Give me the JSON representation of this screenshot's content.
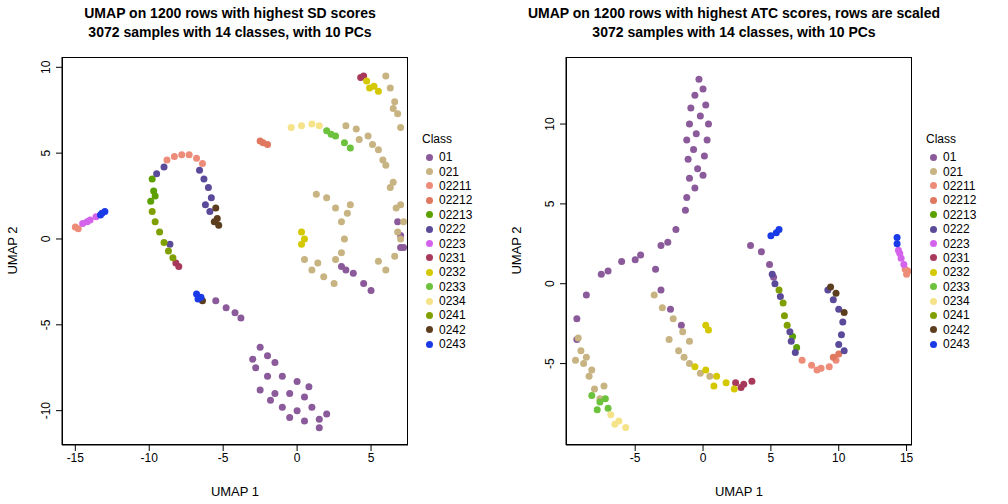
{
  "chart_data": [
    {
      "type": "scatter",
      "title": "UMAP on 1200 rows with highest SD scores",
      "subtitle": "3072 samples with 14 classes, with 10 PCs",
      "x_label": "UMAP 1",
      "y_label": "UMAP 2",
      "legend_title": "Class",
      "xlim": [
        -15.9,
        7.5
      ],
      "ylim": [
        -12,
        10.6
      ],
      "xticks": [
        -15,
        -10,
        -5,
        0,
        5
      ],
      "yticks": [
        -10,
        -5,
        0,
        5,
        10
      ],
      "series": [
        {
          "name": "01",
          "color": "#8B5A9A",
          "x": [
            -2.5,
            -2,
            -1.5,
            -2.8,
            -2,
            -1,
            0,
            -2.5,
            -1.5,
            -0.5,
            0.5,
            1,
            -1,
            0,
            1.5,
            0.5,
            1.5,
            -0.5,
            -1.8,
            2,
            0.8,
            -3,
            -5.5,
            -4.8,
            -4.2,
            -3.8,
            3,
            3.8,
            4.5,
            5,
            3.3,
            6.8,
            7.2,
            7,
            7
          ],
          "values": [
            -6.3,
            -6.8,
            -7.2,
            -7.5,
            -8,
            -8,
            -8.3,
            -8.8,
            -9,
            -9,
            -9.2,
            -9.8,
            -9.8,
            -10,
            -10.5,
            -10.6,
            -11,
            -10.4,
            -9.4,
            -10.2,
            -8.6,
            -7,
            -3.6,
            -4,
            -4.3,
            -4.6,
            -1.6,
            -2,
            -2.6,
            -3,
            -1.8,
            1,
            -0.5,
            0.2,
            -0.5
          ]
        },
        {
          "name": "021",
          "color": "#C8B482",
          "x": [
            3.3,
            4,
            4.8,
            5.5,
            6,
            6.5,
            7,
            7.2,
            7,
            6.6,
            6,
            5.5,
            4.2,
            5.1,
            5.8,
            6.3,
            6.7,
            6.8,
            1.3,
            2,
            2.6,
            3,
            3.2,
            3,
            2.6,
            3.6,
            3.4,
            0.5,
            1,
            1.8,
            2.5,
            1.4,
            6,
            6.3,
            6.6,
            6.8,
            7,
            6.5
          ],
          "values": [
            6.6,
            6.4,
            6,
            5.2,
            4.3,
            3.3,
            2,
            1,
            0,
            -1,
            -1.8,
            -1.3,
            5.8,
            5.5,
            4.6,
            3,
            1.8,
            0.4,
            2.6,
            2.4,
            1.8,
            1,
            0,
            -0.8,
            -1.2,
            2,
            1.5,
            -1.2,
            -1.8,
            -2.2,
            -2.6,
            -1.4,
            9.5,
            8.8,
            8,
            7.3,
            6.5,
            7.6
          ]
        },
        {
          "name": "02211",
          "color": "#EE8C7A",
          "x": [
            -8.8,
            -8.3,
            -7.8,
            -7.3,
            -6.8,
            -6.4,
            -15,
            -14.8
          ],
          "values": [
            4.6,
            4.8,
            4.9,
            4.9,
            4.7,
            4.4,
            0.7,
            0.6
          ]
        },
        {
          "name": "02212",
          "color": "#E07860",
          "x": [
            -2.3,
            -2,
            -2.5
          ],
          "values": [
            5.6,
            5.5,
            5.7
          ]
        },
        {
          "name": "02213",
          "color": "#5CA000",
          "x": [
            -9.8,
            -9.7,
            -9.9,
            -9.6
          ],
          "values": [
            3.5,
            2.8,
            2.2,
            2.5
          ]
        },
        {
          "name": "0222",
          "color": "#5B4A9A",
          "x": [
            -6.6,
            -6.3,
            -6,
            -5.8,
            -6.2,
            -5.9,
            -9.5,
            -9,
            -8.6
          ],
          "values": [
            4,
            3.5,
            3,
            2.4,
            2,
            1.6,
            3.8,
            4.2,
            -0.3
          ]
        },
        {
          "name": "0223",
          "color": "#D463EC",
          "x": [
            -14.5,
            -14,
            -13.6,
            -14.2
          ],
          "values": [
            0.9,
            1.1,
            1.3,
            1
          ]
        },
        {
          "name": "0231",
          "color": "#A8395A",
          "x": [
            4.3,
            4.5,
            -8.2,
            -8
          ],
          "values": [
            9.4,
            9.5,
            -1.4,
            -1.6
          ]
        },
        {
          "name": "0232",
          "color": "#D4C800",
          "x": [
            4.7,
            5.2,
            5.5,
            4.9,
            0.3,
            0.5,
            0.3
          ],
          "values": [
            9.2,
            8.9,
            8.6,
            8.8,
            0.4,
            0,
            -0.3
          ]
        },
        {
          "name": "0233",
          "color": "#6CC23C",
          "x": [
            2,
            2.6,
            3.2,
            3.6,
            2.3
          ],
          "values": [
            6.3,
            6,
            5.6,
            5.3,
            6.1
          ]
        },
        {
          "name": "0234",
          "color": "#F5E38A",
          "x": [
            -0.4,
            0.3,
            1,
            1.5
          ],
          "values": [
            6.5,
            6.6,
            6.7,
            6.6
          ]
        },
        {
          "name": "0241",
          "color": "#7FA000",
          "x": [
            -9.8,
            -9.6,
            -9.3,
            -9,
            -8.7,
            -8.4
          ],
          "values": [
            1.6,
            1,
            0.4,
            -0.2,
            -0.7,
            -1.1
          ]
        },
        {
          "name": "0242",
          "color": "#5C3E1E",
          "x": [
            -5.5,
            -5.4,
            -5.3,
            -5.6,
            -6.4
          ],
          "values": [
            1.8,
            1.2,
            0.8,
            1,
            -3.6
          ]
        },
        {
          "name": "0243",
          "color": "#1A3AE8",
          "x": [
            -13.3,
            -13,
            -13.2,
            -6.8,
            -6.5,
            -6.7
          ],
          "values": [
            1.4,
            1.6,
            1.5,
            -3.2,
            -3.4,
            -3.5
          ]
        }
      ]
    },
    {
      "type": "scatter",
      "title": "UMAP on 1200 rows with highest ATC scores, rows are scaled",
      "subtitle": "3072 samples with 14 classes, with 10 PCs",
      "x_label": "UMAP 1",
      "y_label": "UMAP 2",
      "legend_title": "Class",
      "xlim": [
        -10.1,
        15.4
      ],
      "ylim": [
        -10.1,
        14.2
      ],
      "xticks": [
        -5,
        0,
        5,
        10,
        15
      ],
      "yticks": [
        -5,
        0,
        5,
        10
      ],
      "series": [
        {
          "name": "01",
          "color": "#8B5A9A",
          "x": [
            -0.3,
            0,
            -0.6,
            0.2,
            -0.9,
            -0.2,
            0.4,
            -1,
            -0.5,
            0.3,
            -1.2,
            -0.7,
            0.1,
            -1.1,
            -0.4,
            -1,
            -0.6,
            -1.2,
            0,
            -1.3,
            -2,
            -3.1,
            -4.6,
            -6,
            -7.5,
            -8.6,
            -9.3,
            -9.3,
            -3.5,
            -3.1,
            -2.4,
            -1.6,
            3.5,
            4.3,
            4.9,
            5.2,
            -2.6,
            -5,
            -7
          ],
          "values": [
            12.8,
            12.2,
            11.8,
            11.2,
            11,
            10.5,
            10,
            10,
            9.4,
            9,
            9,
            8.4,
            8,
            7.8,
            7.2,
            6.6,
            6,
            5.4,
            6.8,
            4.6,
            3.4,
            2.4,
            1.8,
            1.4,
            0.6,
            -0.7,
            -2.2,
            -3.5,
            0.9,
            -0.4,
            -1.6,
            -2.6,
            2.4,
            2,
            1.2,
            0.4,
            2.6,
            1.5,
            0.8
          ]
        },
        {
          "name": "021",
          "color": "#C8B482",
          "x": [
            -9.2,
            -9,
            -8.8,
            -8.4,
            -8,
            -7.6,
            -8.6,
            -8.2,
            -7.3,
            -9.4,
            -3.6,
            -3,
            -2.2,
            -1.5,
            -1,
            -2.5,
            -1.8,
            -1,
            -0.2,
            0.5,
            -1.4
          ],
          "values": [
            -3.4,
            -4.2,
            -5,
            -5.8,
            -6.6,
            -7.2,
            -4.6,
            -5.4,
            -6.4,
            -4.8,
            -0.7,
            -1.5,
            -2.2,
            -3,
            -3.6,
            -3.5,
            -4.2,
            -5,
            -5.6,
            -5.8,
            -4.6
          ]
        },
        {
          "name": "02211",
          "color": "#EE8C7A",
          "x": [
            7.3,
            8,
            8.7,
            9.3,
            9.8,
            8.4,
            14.9,
            15,
            15.1
          ],
          "values": [
            -4.8,
            -5.1,
            -5.3,
            -5.2,
            -4.8,
            -5.4,
            0.9,
            0.6,
            0.8
          ]
        },
        {
          "name": "02212",
          "color": "#E07860",
          "x": [
            10,
            9.6
          ],
          "values": [
            -4.4,
            -4.6
          ]
        },
        {
          "name": "02213",
          "color": "#5CA000",
          "x": [
            6.6,
            6.9
          ],
          "values": [
            -3.3,
            -4
          ]
        },
        {
          "name": "0222",
          "color": "#5B4A9A",
          "x": [
            5.1,
            5.3,
            5.7,
            6.4,
            6.5,
            6.8,
            9.2,
            9.6,
            10,
            10.3,
            10.2,
            10,
            10.4
          ],
          "values": [
            0.6,
            0,
            -0.8,
            -3,
            -3.6,
            -4.3,
            -0.4,
            -1,
            -1.6,
            -2.4,
            -3.2,
            -3.8,
            -4.2
          ]
        },
        {
          "name": "0223",
          "color": "#D463EC",
          "x": [
            14.4,
            14.6,
            14.8,
            14.5
          ],
          "values": [
            2.1,
            1.6,
            1.2,
            1.9
          ]
        },
        {
          "name": "0231",
          "color": "#A8395A",
          "x": [
            2.4,
            3,
            3.6,
            2.8
          ],
          "values": [
            -6.2,
            -6.3,
            -6.1,
            -6.5
          ]
        },
        {
          "name": "0232",
          "color": "#D4C800",
          "x": [
            -0.6,
            0.2,
            1,
            1.7,
            2.3,
            0.8,
            0.2,
            0.4
          ],
          "values": [
            -5.2,
            -5.4,
            -5.8,
            -6.2,
            -6.6,
            -6.4,
            -2.6,
            -2.9
          ]
        },
        {
          "name": "0233",
          "color": "#6CC23C",
          "x": [
            -8.2,
            -7.6,
            -7,
            -7.8,
            -7.2
          ],
          "values": [
            -7,
            -7.4,
            -7.8,
            -7.9,
            -7.2
          ]
        },
        {
          "name": "0234",
          "color": "#F5E38A",
          "x": [
            -6.8,
            -6.2,
            -5.7,
            -6.5
          ],
          "values": [
            -8.2,
            -8.6,
            -9,
            -8.8
          ]
        },
        {
          "name": "0241",
          "color": "#7FA000",
          "x": [
            5.6,
            5.9,
            6,
            6.2
          ],
          "values": [
            -0.4,
            -1.2,
            -2,
            -2.6
          ]
        },
        {
          "name": "0242",
          "color": "#5C3E1E",
          "x": [
            9.4,
            9.8,
            10.4
          ],
          "values": [
            -0.2,
            -0.6,
            -1.8
          ]
        },
        {
          "name": "0243",
          "color": "#1A3AE8",
          "x": [
            5,
            5.4,
            5.6,
            14.3,
            14.3
          ],
          "values": [
            3,
            3.2,
            3.4,
            2.9,
            2.5
          ]
        }
      ]
    }
  ]
}
